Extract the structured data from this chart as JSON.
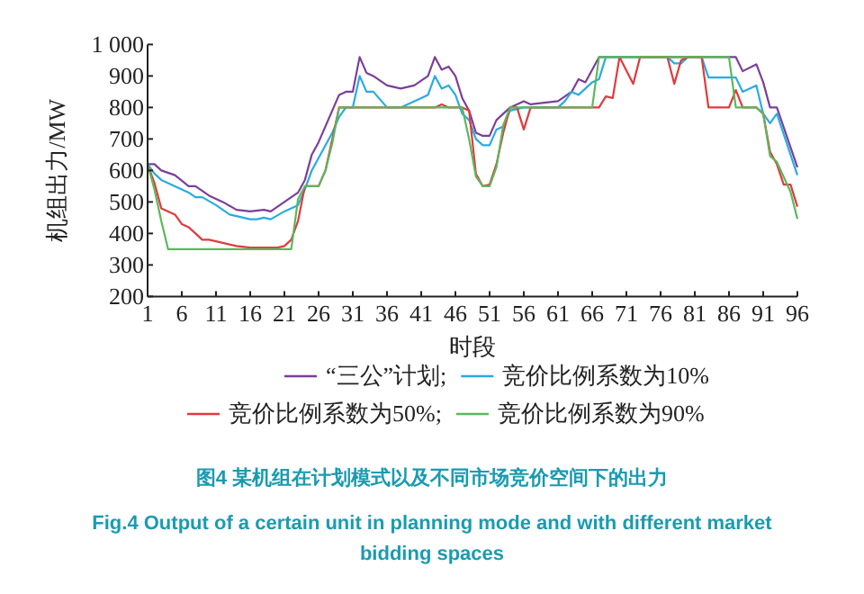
{
  "chart_data": {
    "type": "line",
    "xlabel": "时段",
    "ylabel": "机组出力/MW",
    "xlim": [
      1,
      96
    ],
    "xticks": [
      1,
      6,
      11,
      16,
      21,
      26,
      31,
      36,
      41,
      46,
      51,
      56,
      61,
      66,
      71,
      76,
      81,
      86,
      91,
      96
    ],
    "ylim": [
      200,
      1000
    ],
    "yticks": [
      200,
      300,
      400,
      500,
      600,
      700,
      800,
      900,
      {
        "value": 1000,
        "label": "1 000"
      }
    ],
    "legend": "bottom",
    "line_style": "solid",
    "marker": "none",
    "grid": false,
    "series": [
      {
        "name": "“三公”计划;",
        "color": "#7b3f98",
        "x": [
          1,
          2,
          3,
          5,
          7,
          8,
          10,
          12,
          14,
          16,
          18,
          19,
          21,
          23,
          24,
          25,
          26,
          27,
          28,
          29,
          30,
          31,
          32,
          33,
          34,
          36,
          38,
          40,
          42,
          43,
          44,
          45,
          46,
          47,
          48,
          49,
          50,
          51,
          52,
          54,
          56,
          57,
          61,
          63,
          64,
          65,
          67,
          87,
          88,
          90,
          91,
          92,
          93,
          96
        ],
        "values": [
          620,
          620,
          600,
          585,
          550,
          550,
          520,
          500,
          475,
          470,
          475,
          470,
          500,
          530,
          570,
          650,
          690,
          740,
          790,
          840,
          850,
          850,
          960,
          910,
          900,
          870,
          860,
          870,
          900,
          960,
          920,
          930,
          900,
          830,
          790,
          720,
          710,
          710,
          760,
          800,
          820,
          810,
          820,
          850,
          890,
          880,
          960,
          960,
          915,
          937,
          880,
          800,
          800,
          610
        ]
      },
      {
        "name": "竞价比例系数为10%",
        "color": "#29abe2",
        "x": [
          1,
          2,
          3,
          5,
          7,
          8,
          9,
          11,
          13,
          14,
          16,
          17,
          18,
          19,
          21,
          23,
          24,
          25,
          26,
          27,
          28,
          29,
          30,
          31,
          32,
          33,
          34,
          36,
          38,
          40,
          42,
          43,
          44,
          45,
          46,
          47,
          48,
          49,
          50,
          51,
          52,
          53,
          54,
          56,
          61,
          62,
          63,
          64,
          65,
          66,
          67,
          68,
          77,
          78,
          79,
          80,
          82,
          83,
          87,
          88,
          90,
          91,
          92,
          93,
          96
        ],
        "values": [
          620,
          590,
          570,
          550,
          530,
          515,
          515,
          490,
          460,
          455,
          445,
          445,
          450,
          445,
          470,
          490,
          540,
          600,
          640,
          680,
          720,
          770,
          800,
          800,
          900,
          850,
          850,
          800,
          800,
          820,
          840,
          900,
          860,
          870,
          840,
          780,
          760,
          700,
          680,
          680,
          730,
          740,
          790,
          800,
          800,
          820,
          850,
          840,
          860,
          880,
          890,
          960,
          960,
          940,
          940,
          960,
          960,
          895,
          895,
          850,
          870,
          780,
          750,
          780,
          585
        ]
      },
      {
        "name": "竞价比例系数为50%;",
        "color": "#e03a3e",
        "x": [
          1,
          2,
          3,
          4,
          5,
          6,
          7,
          8,
          9,
          10,
          12,
          14,
          16,
          20,
          21,
          22,
          23,
          24,
          26,
          27,
          28,
          29,
          43,
          44,
          45,
          47,
          48,
          49,
          50,
          51,
          52,
          53,
          54,
          55,
          56,
          57,
          67,
          68,
          69,
          70,
          72,
          73,
          77,
          78,
          79,
          80,
          82,
          83,
          86,
          87,
          88,
          90,
          91,
          92,
          93,
          94,
          95,
          96
        ],
        "values": [
          620,
          560,
          480,
          470,
          460,
          430,
          420,
          400,
          380,
          380,
          370,
          360,
          355,
          355,
          360,
          380,
          440,
          550,
          550,
          600,
          700,
          800,
          800,
          810,
          800,
          800,
          790,
          590,
          550,
          555,
          620,
          720,
          800,
          800,
          730,
          800,
          800,
          835,
          830,
          960,
          875,
          960,
          960,
          875,
          950,
          960,
          960,
          800,
          800,
          855,
          800,
          800,
          780,
          660,
          620,
          555,
          555,
          485
        ]
      },
      {
        "name": "竞价比例系数为90%",
        "color": "#5cb85c",
        "x": [
          1,
          2,
          3,
          4,
          22,
          23,
          24,
          26,
          27,
          28,
          29,
          47,
          48,
          49,
          50,
          51,
          52,
          53,
          54,
          66,
          67,
          86,
          87,
          90,
          91,
          92,
          93,
          95,
          96
        ],
        "values": [
          620,
          540,
          440,
          350,
          350,
          510,
          550,
          550,
          600,
          686,
          800,
          800,
          700,
          581,
          550,
          550,
          610,
          744,
          800,
          800,
          960,
          960,
          800,
          800,
          780,
          646,
          627,
          532,
          446
        ]
      }
    ],
    "annotations": [
      "图4 某机组在计划模式以及不同市场竞价空间下的出力",
      "Fig.4 Output of a certain unit in planning mode and with different market bidding spaces"
    ]
  }
}
